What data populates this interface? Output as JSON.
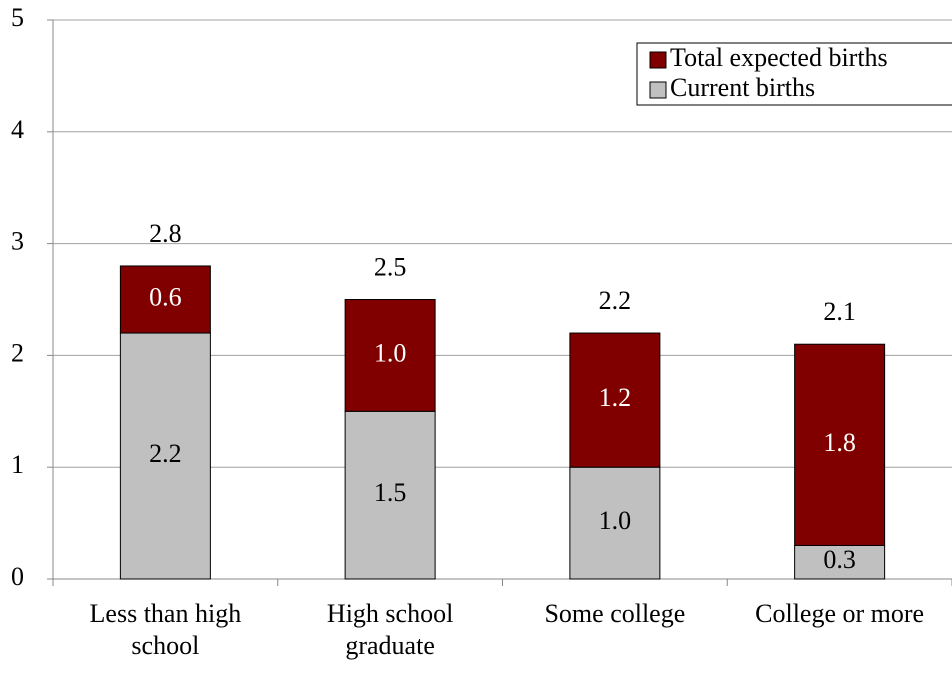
{
  "chart_data": {
    "type": "stacked_bar",
    "categories": [
      "Less than high school",
      "High school graduate",
      "Some college",
      "College or more"
    ],
    "series": [
      {
        "name": "Current births",
        "color": "#c0c0c0",
        "values": [
          2.2,
          1.5,
          1.0,
          0.3
        ],
        "value_labels": [
          "2.2",
          "1.5",
          "1.0",
          "0.3"
        ]
      },
      {
        "name": "Total expected births",
        "color": "#800000",
        "values": [
          0.6,
          1.0,
          1.2,
          1.8
        ],
        "value_labels": [
          "0.6",
          "1.0",
          "1.2",
          "1.8"
        ]
      }
    ],
    "totals": [
      2.8,
      2.5,
      2.2,
      2.1
    ],
    "ylim": [
      0,
      5
    ],
    "yticks": [
      0,
      1,
      2,
      3,
      4,
      5
    ],
    "grid": true,
    "legend": "top-right"
  }
}
